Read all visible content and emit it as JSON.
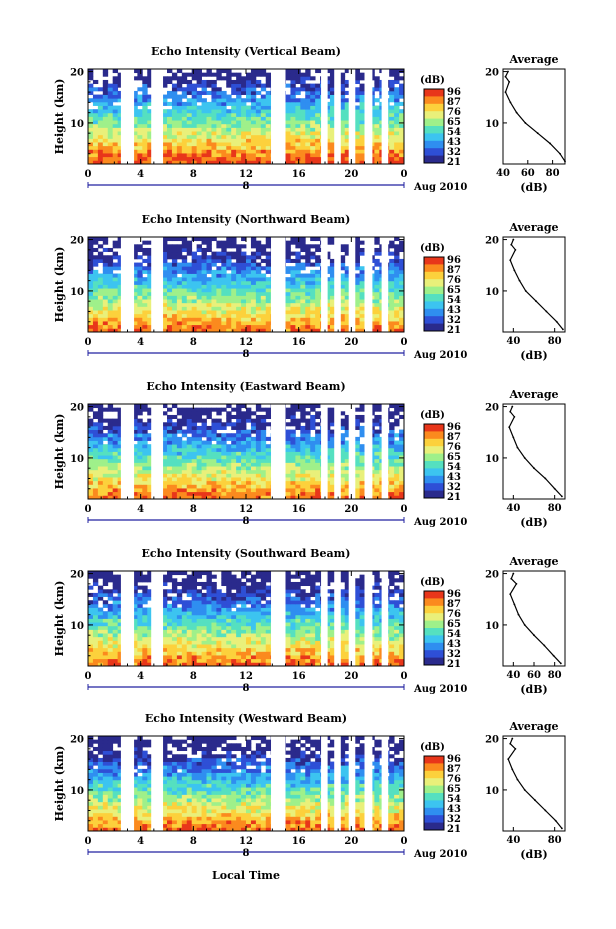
{
  "colors": {
    "scale": [
      "#2a2a8c",
      "#2e4fd6",
      "#2f8ef0",
      "#3cc4f0",
      "#55e0c0",
      "#9ff08a",
      "#e9f07a",
      "#fcd13c",
      "#fb8a1e",
      "#e8361a"
    ]
  },
  "colorbar": {
    "unit": "(dB)",
    "ticks": [
      "96",
      "87",
      "76",
      "65",
      "54",
      "43",
      "32",
      "21"
    ]
  },
  "footer": {
    "month": "Aug 2010",
    "xlabel": "Local Time"
  },
  "chart_data": [
    {
      "type": "heatmap",
      "title": "Echo Intensity (Vertical Beam)",
      "xlabel": "",
      "ylabel": "Height (km)",
      "xlim": [
        0,
        24
      ],
      "ylim": [
        2,
        20.5
      ],
      "xticks": [
        "0",
        "4",
        "8",
        "12",
        "16",
        "20",
        "0"
      ],
      "xticks_bottom": [
        "0",
        "8"
      ],
      "yticks": [
        "10",
        "20"
      ],
      "data_gaps_hours": [
        [
          2.5,
          3.5
        ],
        [
          4.8,
          5.7
        ],
        [
          13.9,
          15.0
        ],
        [
          17.7,
          18.2
        ],
        [
          18.7,
          19.2
        ],
        [
          19.8,
          20.3
        ],
        [
          21.0,
          21.6
        ],
        [
          22.3,
          22.8
        ]
      ],
      "average_profile": {
        "title": "Average",
        "xlabel": "(dB)",
        "xlim": [
          40,
          90
        ],
        "xticks": [
          "40",
          "60",
          "80"
        ],
        "yticks": [
          "10",
          "20"
        ],
        "height_km": [
          2.5,
          4,
          6,
          8,
          10,
          12,
          14,
          16,
          18,
          19,
          20
        ],
        "db": [
          90,
          86,
          78,
          68,
          58,
          51,
          46,
          42,
          45,
          42,
          44
        ]
      }
    },
    {
      "type": "heatmap",
      "title": "Echo Intensity (Northward Beam)",
      "xlabel": "",
      "ylabel": "Height (km)",
      "xlim": [
        0,
        24
      ],
      "ylim": [
        2,
        20.5
      ],
      "xticks": [
        "0",
        "4",
        "8",
        "12",
        "16",
        "20",
        "0"
      ],
      "xticks_bottom": [
        "0",
        "8"
      ],
      "yticks": [
        "10",
        "20"
      ],
      "data_gaps_hours": [
        [
          2.5,
          3.5
        ],
        [
          4.8,
          5.7
        ],
        [
          13.9,
          15.0
        ],
        [
          17.7,
          18.2
        ],
        [
          18.7,
          19.2
        ],
        [
          19.8,
          20.3
        ],
        [
          21.0,
          21.6
        ],
        [
          22.3,
          22.8
        ]
      ],
      "average_profile": {
        "title": "Average",
        "xlabel": "(dB)",
        "xlim": [
          30,
          90
        ],
        "xticks": [
          "40",
          "80"
        ],
        "yticks": [
          "10",
          "20"
        ],
        "height_km": [
          2.5,
          4,
          6,
          8,
          10,
          12,
          14,
          16,
          18,
          19,
          20
        ],
        "db": [
          88,
          82,
          72,
          62,
          52,
          46,
          41,
          37,
          42,
          38,
          40
        ]
      }
    },
    {
      "type": "heatmap",
      "title": "Echo Intensity (Eastward Beam)",
      "xlabel": "",
      "ylabel": "Height (km)",
      "xlim": [
        0,
        24
      ],
      "ylim": [
        2,
        20.5
      ],
      "xticks": [
        "0",
        "4",
        "8",
        "12",
        "16",
        "20",
        "0"
      ],
      "xticks_bottom": [
        "0",
        "8"
      ],
      "yticks": [
        "10",
        "20"
      ],
      "data_gaps_hours": [
        [
          2.5,
          3.5
        ],
        [
          4.8,
          5.7
        ],
        [
          13.9,
          15.0
        ],
        [
          17.7,
          18.2
        ],
        [
          18.7,
          19.2
        ],
        [
          19.8,
          20.3
        ],
        [
          21.0,
          21.6
        ],
        [
          22.3,
          22.8
        ]
      ],
      "average_profile": {
        "title": "Average",
        "xlabel": "(dB)",
        "xlim": [
          30,
          90
        ],
        "xticks": [
          "40",
          "80"
        ],
        "yticks": [
          "10",
          "20"
        ],
        "height_km": [
          2.5,
          4,
          6,
          8,
          10,
          12,
          14,
          16,
          18,
          19,
          20
        ],
        "db": [
          87,
          80,
          71,
          60,
          51,
          44,
          40,
          36,
          41,
          37,
          39
        ]
      }
    },
    {
      "type": "heatmap",
      "title": "Echo Intensity (Southward Beam)",
      "xlabel": "",
      "ylabel": "Height (km)",
      "xlim": [
        0,
        24
      ],
      "ylim": [
        2,
        20.5
      ],
      "xticks": [
        "0",
        "4",
        "8",
        "12",
        "16",
        "20",
        "0"
      ],
      "xticks_bottom": [
        "0",
        "8"
      ],
      "yticks": [
        "10",
        "20"
      ],
      "data_gaps_hours": [
        [
          2.5,
          3.5
        ],
        [
          4.8,
          5.7
        ],
        [
          13.9,
          15.0
        ],
        [
          17.7,
          18.2
        ],
        [
          18.7,
          19.2
        ],
        [
          19.8,
          20.3
        ],
        [
          21.0,
          21.6
        ],
        [
          22.3,
          22.8
        ]
      ],
      "average_profile": {
        "title": "Average",
        "xlabel": "(dB)",
        "xlim": [
          30,
          90
        ],
        "xticks": [
          "40",
          "60",
          "80"
        ],
        "yticks": [
          "10",
          "20"
        ],
        "height_km": [
          2.5,
          4,
          6,
          8,
          10,
          12,
          14,
          16,
          18,
          19,
          20
        ],
        "db": [
          86,
          79,
          70,
          60,
          51,
          45,
          41,
          37,
          43,
          38,
          40
        ]
      }
    },
    {
      "type": "heatmap",
      "title": "Echo Intensity (Westward Beam)",
      "xlabel": "",
      "ylabel": "Height (km)",
      "xlim": [
        0,
        24
      ],
      "ylim": [
        2,
        20.5
      ],
      "xticks": [
        "0",
        "4",
        "8",
        "12",
        "16",
        "20",
        "0"
      ],
      "xticks_bottom": [
        "0",
        "8"
      ],
      "yticks": [
        "10",
        "20"
      ],
      "data_gaps_hours": [
        [
          2.5,
          3.5
        ],
        [
          4.8,
          5.7
        ],
        [
          13.9,
          15.0
        ],
        [
          17.7,
          18.2
        ],
        [
          18.7,
          19.2
        ],
        [
          19.8,
          20.3
        ],
        [
          21.0,
          21.6
        ],
        [
          22.3,
          22.8
        ]
      ],
      "average_profile": {
        "title": "Average",
        "xlabel": "(dB)",
        "xlim": [
          30,
          90
        ],
        "xticks": [
          "40",
          "80"
        ],
        "yticks": [
          "10",
          "20"
        ],
        "height_km": [
          2.5,
          4,
          6,
          8,
          10,
          12,
          14,
          16,
          18,
          19,
          20
        ],
        "db": [
          87,
          81,
          71,
          61,
          51,
          44,
          39,
          35,
          42,
          37,
          39
        ]
      }
    }
  ]
}
